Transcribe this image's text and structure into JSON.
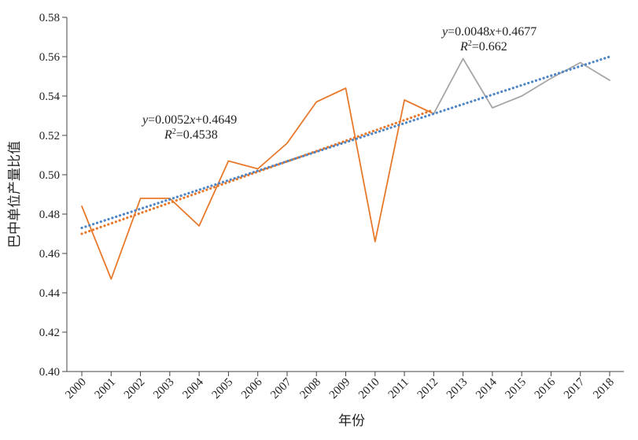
{
  "chart_data": {
    "type": "line",
    "xlabel": "年份",
    "ylabel": "巴中单位产量比值",
    "categories": [
      "2000",
      "2001",
      "2002",
      "2003",
      "2004",
      "2005",
      "2006",
      "2007",
      "2008",
      "2009",
      "2010",
      "2011",
      "2012",
      "2013",
      "2014",
      "2015",
      "2016",
      "2017",
      "2018"
    ],
    "ylim": [
      0.4,
      0.58
    ],
    "yticks": [
      "0.40",
      "0.42",
      "0.44",
      "0.46",
      "0.48",
      "0.50",
      "0.52",
      "0.54",
      "0.56",
      "0.58"
    ],
    "grid": false,
    "legend": "none",
    "series": [
      {
        "color": "#E8792B",
        "style": "solid",
        "x": [
          "2000",
          "2001",
          "2002",
          "2003",
          "2004",
          "2005",
          "2006",
          "2007",
          "2008",
          "2009",
          "2010",
          "2011",
          "2012"
        ],
        "values": [
          0.484,
          0.447,
          0.488,
          0.488,
          0.474,
          0.507,
          0.503,
          0.516,
          0.537,
          0.544,
          0.466,
          0.538,
          0.531
        ]
      },
      {
        "color": "#A6A6A6",
        "style": "solid",
        "x": [
          "2012",
          "2013",
          "2014",
          "2015",
          "2016",
          "2017",
          "2018"
        ],
        "values": [
          0.531,
          0.559,
          0.534,
          0.54,
          0.549,
          0.557,
          0.548
        ]
      },
      {
        "color": "#E8792B",
        "style": "dotted",
        "trendline": true,
        "x": [
          "2000",
          "2012"
        ],
        "values": [
          0.47,
          0.533
        ]
      },
      {
        "color": "#4F86C6",
        "style": "dotted",
        "trendline": true,
        "x": [
          "2000",
          "2018"
        ],
        "values": [
          0.473,
          0.56
        ]
      }
    ],
    "annotations": {
      "trend_a": {
        "eq_var": "y",
        "eq_mid": "=0.0052",
        "eq_x": "x",
        "eq_tail": "+0.4649",
        "r2_var": "R",
        "r2_sup": "2",
        "r2_val": "=0.4538"
      },
      "trend_b": {
        "eq_var": "y",
        "eq_mid": "=0.0048",
        "eq_x": "x",
        "eq_tail": "+0.4677",
        "r2_var": "R",
        "r2_sup": "2",
        "r2_val": "=0.662"
      }
    }
  }
}
